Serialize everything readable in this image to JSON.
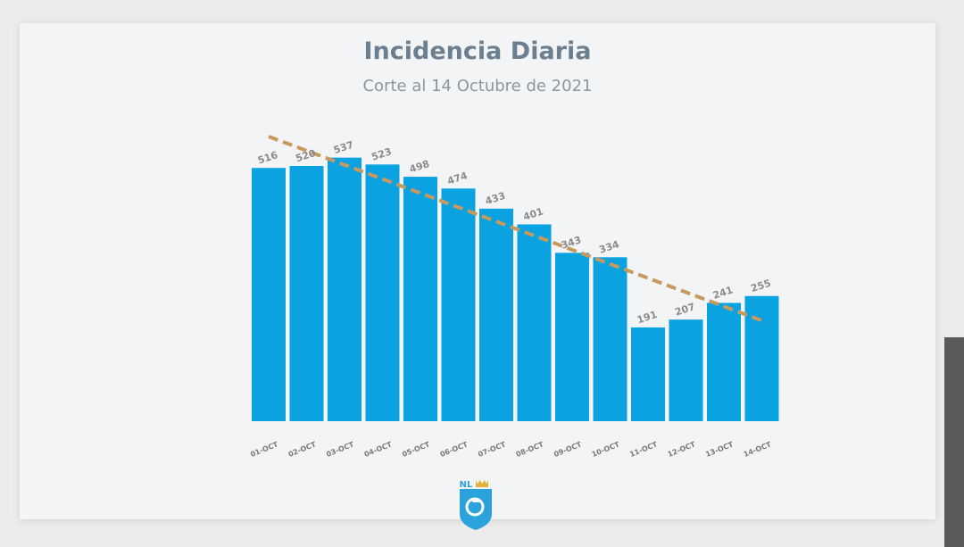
{
  "title": "Incidencia Diaria",
  "subtitle": "Corte al 14 Octubre de 2021",
  "logo": {
    "text": "NL",
    "icon": "nuevo-leon-shield-icon"
  },
  "colors": {
    "bar": "#0aa2e0",
    "trend": "#c6995e",
    "title": "#6b7f90"
  },
  "chart_data": {
    "type": "bar",
    "title": "Incidencia Diaria",
    "subtitle": "Corte al 14 Octubre de 2021",
    "categories": [
      "01-OCT",
      "02-OCT",
      "03-OCT",
      "04-OCT",
      "05-OCT",
      "06-OCT",
      "07-OCT",
      "08-OCT",
      "09-OCT",
      "10-OCT",
      "11-OCT",
      "12-OCT",
      "13-OCT",
      "14-OCT"
    ],
    "values": [
      516,
      520,
      537,
      523,
      498,
      474,
      433,
      401,
      343,
      334,
      191,
      207,
      241,
      255
    ],
    "value_labels": [
      "516",
      "520",
      "537",
      "523",
      "498",
      "474",
      "433",
      "401",
      "343",
      "334",
      "191",
      "207",
      "241",
      "255"
    ],
    "trendline": {
      "type": "linear",
      "style": "dashed",
      "start": 580,
      "end": 205
    },
    "ylim": [
      0,
      600
    ],
    "xlabel": "",
    "ylabel": "",
    "grid": false,
    "legend": "none"
  }
}
